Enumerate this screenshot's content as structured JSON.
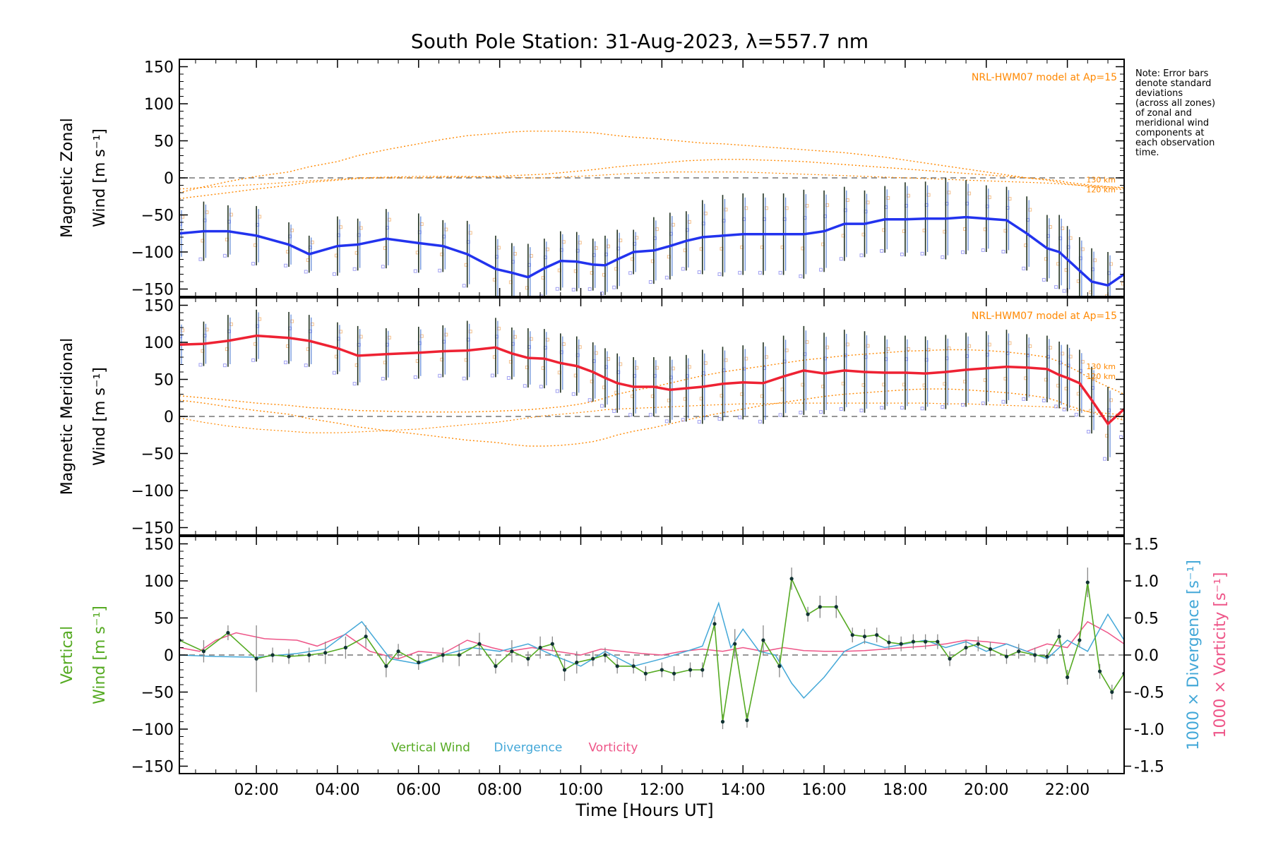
{
  "chart_data": {
    "type": "line",
    "title": "South Pole Station: 31-Aug-2023, λ=557.7 nm",
    "xlabel": "Time [Hours UT]",
    "xlim": [
      0.1,
      23.4
    ],
    "x_ticks": [
      "02:00",
      "04:00",
      "06:00",
      "08:00",
      "10:00",
      "12:00",
      "14:00",
      "16:00",
      "18:00",
      "20:00",
      "22:00"
    ],
    "x_tick_hours": [
      2,
      4,
      6,
      8,
      10,
      12,
      14,
      16,
      18,
      20,
      22
    ],
    "model_label": "NRL-HWM07 model at Ap=15",
    "model_alt_labels": [
      "130 km",
      "120 km"
    ],
    "note_lines": [
      "Note: Error bars",
      "denote standard",
      "deviations",
      "(across all zones)",
      "of zonal and",
      "meridional wind",
      "components at",
      "each observation",
      "time."
    ],
    "colors": {
      "zonal": "#2233ee",
      "meridional": "#ee2233",
      "vertical": "#55aa22",
      "divergence": "#44a8d8",
      "vorticity": "#ee5588",
      "model": "#ff8800",
      "samples": "#8888ee",
      "errorbar_dark": "#223322",
      "errorbar_blue": "#3366cc"
    },
    "panels": [
      {
        "id": "zonal",
        "ylabel_line1": "Magnetic Zonal",
        "ylabel_line2": "Wind [m s⁻¹]",
        "ylim": [
          -160,
          160
        ],
        "yticks": [
          150,
          100,
          50,
          0,
          -50,
          -100,
          -150
        ],
        "series_name": "Zonal Wind",
        "x": [
          0.1,
          0.7,
          1.3,
          2.0,
          2.8,
          3.3,
          4.0,
          4.5,
          5.2,
          6.0,
          6.6,
          7.2,
          7.9,
          8.3,
          8.7,
          9.1,
          9.5,
          9.9,
          10.3,
          10.6,
          10.9,
          11.3,
          11.8,
          12.2,
          12.6,
          13.0,
          13.5,
          14.0,
          14.5,
          15.0,
          15.5,
          16.0,
          16.5,
          17.0,
          17.5,
          18.0,
          18.5,
          19.0,
          19.5,
          20.0,
          20.5,
          21.0,
          21.5,
          21.8,
          22.0,
          22.3,
          22.6,
          23.0,
          23.4
        ],
        "y": [
          -75,
          -72,
          -72,
          -78,
          -90,
          -103,
          -92,
          -90,
          -82,
          -88,
          -92,
          -103,
          -123,
          -128,
          -134,
          -122,
          -112,
          -113,
          -117,
          -118,
          -110,
          -100,
          -98,
          -92,
          -85,
          -80,
          -78,
          -76,
          -76,
          -76,
          -76,
          -72,
          -62,
          -62,
          -56,
          -56,
          -55,
          -55,
          -53,
          -55,
          -57,
          -75,
          -95,
          -100,
          -110,
          -125,
          -140,
          -145,
          -130
        ],
        "err": [
          35,
          40,
          35,
          40,
          30,
          25,
          40,
          35,
          40,
          40,
          35,
          45,
          45,
          40,
          45,
          40,
          40,
          40,
          35,
          40,
          40,
          30,
          45,
          45,
          40,
          50,
          55,
          55,
          55,
          55,
          60,
          55,
          50,
          45,
          45,
          50,
          50,
          55,
          50,
          45,
          45,
          50,
          45,
          50,
          45,
          45,
          45,
          45,
          40
        ],
        "model_130": [
          -20,
          -12,
          -5,
          2,
          8,
          15,
          22,
          30,
          38,
          46,
          52,
          57,
          60,
          62,
          63,
          63,
          63,
          62,
          61,
          59,
          57,
          55,
          53,
          51,
          49,
          47,
          46,
          44,
          42,
          40,
          38,
          36,
          34,
          31,
          28,
          24,
          20,
          16,
          12,
          8,
          4,
          0,
          -3,
          -6,
          -8,
          -10,
          -12,
          -14,
          -16
        ],
        "model_120": [
          -28,
          -24,
          -20,
          -15,
          -10,
          -6,
          -3,
          -1,
          0,
          0,
          1,
          1,
          2,
          3,
          4,
          5,
          7,
          9,
          11,
          13,
          15,
          17,
          19,
          21,
          23,
          24,
          25,
          25,
          24,
          23,
          22,
          20,
          18,
          16,
          14,
          12,
          10,
          8,
          6,
          4,
          2,
          0,
          -2,
          -4,
          -6,
          -8,
          -10,
          -12,
          -14
        ],
        "model_3": [
          -15,
          -13,
          -11,
          -9,
          -6,
          -4,
          -2,
          0,
          1,
          2,
          2,
          2,
          1,
          1,
          0,
          0,
          1,
          2,
          3,
          4,
          5,
          6,
          7,
          8,
          8,
          8,
          8,
          8,
          7,
          6,
          5,
          4,
          3,
          2,
          1,
          0,
          -1,
          -2,
          -3,
          -4,
          -5,
          -6,
          -7,
          -8,
          -9,
          -10,
          -11,
          -12,
          -13
        ]
      },
      {
        "id": "meridional",
        "ylabel_line1": "Magnetic Meridional",
        "ylabel_line2": "Wind [m s⁻¹]",
        "ylim": [
          -160,
          160
        ],
        "yticks": [
          150,
          100,
          50,
          0,
          -50,
          -100,
          -150
        ],
        "series_name": "Meridional Wind",
        "x": [
          0.1,
          0.7,
          1.3,
          2.0,
          2.8,
          3.3,
          4.0,
          4.5,
          5.2,
          6.0,
          6.6,
          7.2,
          7.9,
          8.3,
          8.7,
          9.1,
          9.5,
          9.9,
          10.3,
          10.6,
          10.9,
          11.3,
          11.8,
          12.2,
          12.6,
          13.0,
          13.5,
          14.0,
          14.5,
          15.0,
          15.5,
          16.0,
          16.5,
          17.0,
          17.5,
          18.0,
          18.5,
          19.0,
          19.5,
          20.0,
          20.5,
          21.0,
          21.5,
          21.8,
          22.0,
          22.3,
          22.6,
          23.0,
          23.4
        ],
        "y": [
          97,
          98,
          102,
          109,
          106,
          102,
          92,
          82,
          84,
          86,
          88,
          89,
          93,
          85,
          79,
          78,
          72,
          68,
          60,
          52,
          45,
          40,
          40,
          36,
          38,
          40,
          44,
          46,
          45,
          54,
          62,
          58,
          62,
          60,
          59,
          59,
          58,
          60,
          63,
          65,
          67,
          66,
          64,
          56,
          52,
          45,
          22,
          -10,
          10
        ],
        "err": [
          30,
          30,
          35,
          35,
          35,
          35,
          35,
          40,
          35,
          35,
          35,
          40,
          40,
          35,
          40,
          40,
          40,
          40,
          40,
          40,
          40,
          40,
          40,
          45,
          45,
          50,
          50,
          50,
          55,
          55,
          60,
          55,
          55,
          55,
          50,
          50,
          50,
          50,
          50,
          50,
          50,
          45,
          45,
          45,
          45,
          45,
          45,
          50,
          40
        ],
        "model_130": [
          28,
          25,
          22,
          18,
          15,
          12,
          10,
          8,
          7,
          6,
          6,
          6,
          7,
          8,
          9,
          11,
          13,
          16,
          20,
          25,
          30,
          35,
          40,
          45,
          50,
          55,
          60,
          64,
          68,
          72,
          76,
          79,
          82,
          84,
          86,
          88,
          89,
          90,
          90,
          89,
          87,
          84,
          80,
          74,
          68,
          60,
          50,
          40,
          30
        ],
        "model_120": [
          22,
          18,
          13,
          8,
          3,
          -3,
          -9,
          -14,
          -19,
          -24,
          -28,
          -32,
          -35,
          -38,
          -40,
          -40,
          -39,
          -37,
          -34,
          -30,
          -25,
          -20,
          -15,
          -10,
          -5,
          0,
          5,
          10,
          15,
          19,
          23,
          27,
          30,
          32,
          34,
          36,
          37,
          37,
          36,
          34,
          32,
          29,
          25,
          20,
          15,
          10,
          5,
          0,
          -5
        ],
        "model_3": [
          -2,
          -8,
          -13,
          -17,
          -20,
          -22,
          -22,
          -21,
          -19,
          -17,
          -14,
          -11,
          -8,
          -5,
          -2,
          1,
          3,
          5,
          7,
          9,
          10,
          11,
          12,
          13,
          14,
          15,
          16,
          17,
          17,
          18,
          18,
          18,
          18,
          18,
          18,
          18,
          18,
          17,
          17,
          16,
          15,
          14,
          13,
          12,
          10,
          8,
          6,
          4,
          2
        ]
      },
      {
        "id": "vertical",
        "ylabel_line1": "Vertical",
        "ylabel_line2": "Wind [m s⁻¹]",
        "ylim": [
          -160,
          160
        ],
        "yticks": [
          150,
          100,
          50,
          0,
          -50,
          -100,
          -150
        ],
        "y2_label_a": "1000 × Divergence [s⁻¹]",
        "y2_label_b": "1000 × Vorticity [s⁻¹]",
        "y2lim": [
          -1.6,
          1.6
        ],
        "y2ticks": [
          "1.5",
          "1.0",
          "0.5",
          "0.0",
          "-0.5",
          "-1.0",
          "-1.5"
        ],
        "y2tick_values": [
          1.5,
          1.0,
          0.5,
          0.0,
          -0.5,
          -1.0,
          -1.5
        ],
        "legend": [
          "Vertical Wind",
          "Divergence",
          "Vorticity"
        ],
        "x": [
          0.1,
          0.7,
          1.3,
          2.0,
          2.4,
          2.8,
          3.3,
          3.7,
          4.2,
          4.7,
          5.2,
          5.5,
          6.0,
          6.6,
          7.0,
          7.5,
          7.9,
          8.3,
          8.7,
          9.0,
          9.3,
          9.6,
          9.9,
          10.3,
          10.6,
          10.9,
          11.3,
          11.6,
          12.0,
          12.3,
          12.7,
          13.0,
          13.3,
          13.5,
          13.8,
          14.1,
          14.5,
          14.9,
          15.2,
          15.6,
          15.9,
          16.3,
          16.7,
          17.0,
          17.3,
          17.6,
          17.9,
          18.2,
          18.5,
          18.8,
          19.1,
          19.5,
          19.8,
          20.1,
          20.5,
          20.8,
          21.2,
          21.5,
          21.8,
          22.0,
          22.3,
          22.5,
          22.8,
          23.1,
          23.4
        ],
        "y": [
          20,
          5,
          30,
          -5,
          0,
          -2,
          0,
          3,
          10,
          25,
          -15,
          5,
          -10,
          0,
          0,
          15,
          -15,
          5,
          -5,
          10,
          15,
          -20,
          -10,
          -5,
          0,
          -15,
          -15,
          -25,
          -20,
          -25,
          -20,
          -20,
          42,
          -90,
          15,
          -88,
          20,
          -15,
          103,
          55,
          65,
          65,
          27,
          25,
          27,
          17,
          15,
          18,
          18,
          18,
          -5,
          10,
          15,
          8,
          -2,
          5,
          0,
          -2,
          25,
          -30,
          20,
          98,
          -22,
          -50,
          -25
        ],
        "err": [
          15,
          15,
          10,
          45,
          10,
          10,
          10,
          15,
          15,
          15,
          15,
          10,
          10,
          10,
          15,
          15,
          10,
          15,
          10,
          15,
          10,
          15,
          15,
          10,
          10,
          10,
          10,
          10,
          10,
          10,
          10,
          10,
          10,
          10,
          20,
          10,
          20,
          15,
          15,
          10,
          15,
          15,
          10,
          10,
          10,
          10,
          10,
          10,
          10,
          10,
          10,
          10,
          10,
          10,
          10,
          10,
          10,
          10,
          10,
          10,
          10,
          20,
          10,
          10,
          15
        ],
        "div_x": [
          0.1,
          1.0,
          2.0,
          3.0,
          3.7,
          4.6,
          5.3,
          6.0,
          6.6,
          7.3,
          8.0,
          8.7,
          9.3,
          10.0,
          10.6,
          11.3,
          12.0,
          12.6,
          13.0,
          13.4,
          13.7,
          14.0,
          14.4,
          14.8,
          15.2,
          15.5,
          16.0,
          16.5,
          17.0,
          17.5,
          18.0,
          18.5,
          19.0,
          19.5,
          20.0,
          20.5,
          21.0,
          21.5,
          22.0,
          22.5,
          23.0,
          23.4
        ],
        "div_y": [
          0.0,
          -0.02,
          -0.03,
          0.02,
          0.08,
          0.45,
          -0.05,
          -0.12,
          0.0,
          0.1,
          0.05,
          0.15,
          0.0,
          -0.15,
          0.05,
          -0.15,
          -0.05,
          0.05,
          0.12,
          0.7,
          0.1,
          0.35,
          0.05,
          0.0,
          -0.38,
          -0.58,
          -0.3,
          0.05,
          0.18,
          0.1,
          0.15,
          0.2,
          0.1,
          0.18,
          0.05,
          0.15,
          0.05,
          -0.05,
          0.2,
          0.05,
          0.55,
          0.2
        ],
        "vor_x": [
          0.1,
          0.6,
          1.0,
          1.5,
          2.2,
          3.0,
          3.5,
          4.2,
          4.8,
          5.5,
          6.0,
          6.6,
          7.2,
          7.8,
          8.2,
          8.8,
          9.4,
          10.0,
          10.5,
          11.0,
          11.5,
          12.0,
          12.5,
          13.0,
          13.5,
          14.0,
          14.5,
          15.0,
          15.5,
          16.0,
          16.5,
          17.0,
          17.5,
          18.0,
          18.5,
          19.0,
          19.5,
          20.0,
          20.5,
          21.0,
          21.5,
          22.0,
          22.5,
          23.0,
          23.4
        ],
        "vor_y": [
          0.1,
          0.05,
          0.2,
          0.3,
          0.22,
          0.2,
          0.12,
          0.28,
          0.05,
          -0.05,
          0.05,
          0.02,
          0.2,
          0.1,
          0.05,
          0.1,
          0.05,
          0.0,
          0.08,
          0.05,
          0.02,
          0.0,
          0.05,
          0.08,
          0.05,
          0.1,
          0.05,
          0.1,
          0.06,
          0.05,
          0.05,
          0.06,
          0.08,
          0.1,
          0.12,
          0.15,
          0.2,
          0.18,
          0.15,
          0.05,
          0.15,
          0.1,
          0.45,
          0.3,
          0.15
        ]
      }
    ]
  }
}
